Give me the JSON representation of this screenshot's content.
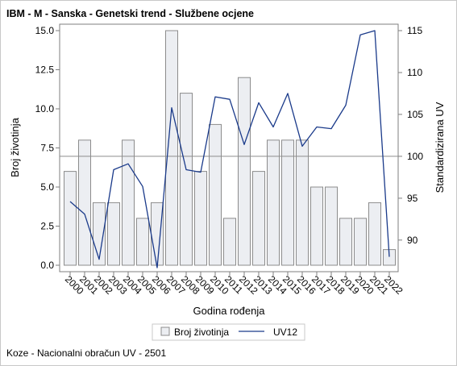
{
  "title": "IBM - M - Sanska - Genetski trend - Službene ocjene",
  "footnote": "Koze - Nacionalni obračun UV - 2501",
  "colors": {
    "bar_fill": "#eceef2",
    "bar_stroke": "#8c8c8c",
    "line": "#1a3a8a",
    "reference_line": "#8c8c8c",
    "axis": "#7f7f7f"
  },
  "chart_data": {
    "type": "bar",
    "categories": [
      "2000",
      "2001",
      "2002",
      "2003",
      "2004",
      "2005",
      "2006",
      "2007",
      "2008",
      "2009",
      "2010",
      "2011",
      "2012",
      "2013",
      "2014",
      "2015",
      "2016",
      "2017",
      "2018",
      "2019",
      "2020",
      "2021",
      "2022"
    ],
    "xlabel": "Godina rođenja",
    "ylabel": "Broj životinja",
    "y2label": "Standardizirana UV",
    "ylim": [
      0,
      15
    ],
    "yticks": [
      "0.0",
      "2.5",
      "5.0",
      "7.5",
      "10.0",
      "12.5",
      "15.0"
    ],
    "y2lim": [
      87,
      115
    ],
    "y2ticks": [
      "90",
      "95",
      "100",
      "105",
      "110",
      "115"
    ],
    "reference_y2": 100,
    "legend_position": "bottom",
    "series": [
      {
        "name": "Broj životinja",
        "kind": "bar",
        "axis": "left",
        "values": [
          6,
          8,
          4,
          4,
          8,
          3,
          4,
          15,
          11,
          6,
          9,
          3,
          12,
          6,
          8,
          8,
          8,
          5,
          5,
          3,
          3,
          4,
          1
        ]
      },
      {
        "name": "UV12",
        "kind": "line",
        "axis": "right",
        "values": [
          94.6,
          93.1,
          87.7,
          98.4,
          99.1,
          96.4,
          86.7,
          105.8,
          98.4,
          98.1,
          107.1,
          106.8,
          101.4,
          106.4,
          103.5,
          107.5,
          101.2,
          103.5,
          103.3,
          106.1,
          114.5,
          115.0,
          88.0
        ]
      }
    ]
  }
}
